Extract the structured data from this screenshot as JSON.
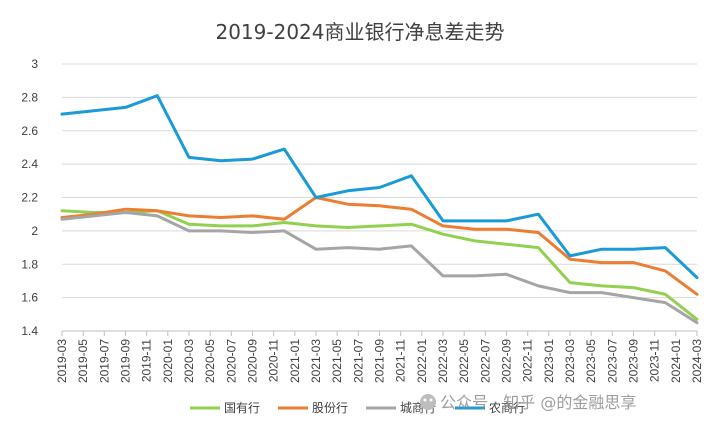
{
  "chart_data": {
    "type": "line",
    "title": "2019-2024商业银行净息差走势",
    "xlabel": "",
    "ylabel": "",
    "ylim": [
      1.4,
      3.0
    ],
    "yticks": [
      "1.4",
      "1.6",
      "1.8",
      "2",
      "2.2",
      "2.4",
      "2.6",
      "2.8",
      "3"
    ],
    "grid": true,
    "legend_position": "bottom",
    "x": [
      "2019-03",
      "2019-05",
      "2019-07",
      "2019-09",
      "2019-11",
      "2020-01",
      "2020-03",
      "2020-05",
      "2020-07",
      "2020-09",
      "2020-11",
      "2021-01",
      "2021-03",
      "2021-05",
      "2021-07",
      "2021-09",
      "2021-11",
      "2022-01",
      "2022-03",
      "2022-05",
      "2022-07",
      "2022-09",
      "2022-11",
      "2023-01",
      "2023-03",
      "2023-05",
      "2023-07",
      "2023-09",
      "2023-11",
      "2024-01",
      "2024-03"
    ],
    "series": [
      {
        "name": "国有行",
        "color": "#92d050",
        "x": [
          "2019-03",
          "2019-06",
          "2019-09",
          "2019-12",
          "2020-03",
          "2020-06",
          "2020-09",
          "2020-12",
          "2021-03",
          "2021-06",
          "2021-09",
          "2021-12",
          "2022-03",
          "2022-06",
          "2022-09",
          "2022-12",
          "2023-03",
          "2023-06",
          "2023-09",
          "2023-12",
          "2024-03"
        ],
        "values": [
          2.12,
          2.11,
          2.11,
          2.12,
          2.04,
          2.03,
          2.03,
          2.05,
          2.03,
          2.02,
          2.03,
          2.04,
          1.98,
          1.94,
          1.92,
          1.9,
          1.69,
          1.67,
          1.66,
          1.62,
          1.47
        ]
      },
      {
        "name": "股份行",
        "color": "#ed7d31",
        "x": [
          "2019-03",
          "2019-06",
          "2019-09",
          "2019-12",
          "2020-03",
          "2020-06",
          "2020-09",
          "2020-12",
          "2021-03",
          "2021-06",
          "2021-09",
          "2021-12",
          "2022-03",
          "2022-06",
          "2022-09",
          "2022-12",
          "2023-03",
          "2023-06",
          "2023-09",
          "2023-12",
          "2024-03"
        ],
        "values": [
          2.08,
          2.1,
          2.13,
          2.12,
          2.09,
          2.08,
          2.09,
          2.07,
          2.2,
          2.16,
          2.15,
          2.13,
          2.03,
          2.01,
          2.01,
          1.99,
          1.83,
          1.81,
          1.81,
          1.76,
          1.62
        ]
      },
      {
        "name": "城商行",
        "color": "#a5a5a5",
        "x": [
          "2019-03",
          "2019-06",
          "2019-09",
          "2019-12",
          "2020-03",
          "2020-06",
          "2020-09",
          "2020-12",
          "2021-03",
          "2021-06",
          "2021-09",
          "2021-12",
          "2022-03",
          "2022-06",
          "2022-09",
          "2022-12",
          "2023-03",
          "2023-06",
          "2023-09",
          "2023-12",
          "2024-03"
        ],
        "values": [
          2.07,
          2.09,
          2.11,
          2.09,
          2.0,
          2.0,
          1.99,
          2.0,
          1.89,
          1.9,
          1.89,
          1.91,
          1.73,
          1.73,
          1.74,
          1.67,
          1.63,
          1.63,
          1.6,
          1.57,
          1.45
        ]
      },
      {
        "name": "农商行",
        "color": "#1a9bd7",
        "x": [
          "2019-03",
          "2019-06",
          "2019-09",
          "2019-12",
          "2020-03",
          "2020-06",
          "2020-09",
          "2020-12",
          "2021-03",
          "2021-06",
          "2021-09",
          "2021-12",
          "2022-03",
          "2022-06",
          "2022-09",
          "2022-12",
          "2023-03",
          "2023-06",
          "2023-09",
          "2023-12",
          "2024-03"
        ],
        "values": [
          2.7,
          2.72,
          2.74,
          2.81,
          2.44,
          2.42,
          2.43,
          2.49,
          2.2,
          2.24,
          2.26,
          2.33,
          2.06,
          2.06,
          2.06,
          2.1,
          1.85,
          1.89,
          1.89,
          1.9,
          1.72
        ]
      }
    ]
  },
  "watermark": {
    "text": "公众号 · 知乎 @的金融思享"
  },
  "colors": {
    "gridline": "#d9d9d9",
    "axis": "#bfbfbf",
    "text": "#404040"
  }
}
